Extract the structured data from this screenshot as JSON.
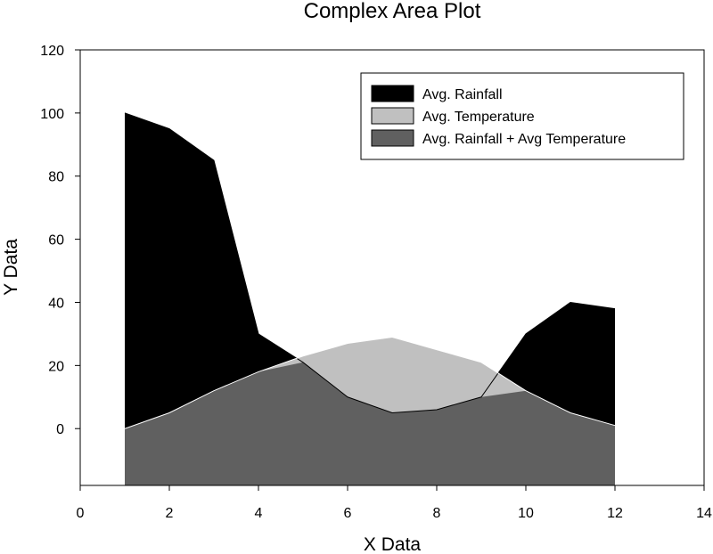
{
  "chart_data": {
    "type": "area",
    "title": "Complex Area Plot",
    "xlabel": "X Data",
    "ylabel": "Y Data",
    "xlim": [
      0,
      14
    ],
    "ylim": [
      -18,
      120
    ],
    "xticks": [
      "0",
      "2",
      "4",
      "6",
      "8",
      "10",
      "12",
      "14"
    ],
    "yticks": [
      "0",
      "20",
      "40",
      "60",
      "80",
      "100",
      "120"
    ],
    "grid": false,
    "legend_position": "top-right",
    "x": [
      1,
      2,
      3,
      4,
      5,
      6,
      7,
      8,
      9,
      10,
      11,
      12
    ],
    "series": [
      {
        "name": "Avg. Rainfall",
        "color": "#000000",
        "values": [
          100,
          95,
          85,
          30,
          21,
          10,
          5,
          6,
          10,
          30,
          40,
          38
        ]
      },
      {
        "name": "Avg. Temperature",
        "color": "#c0c0c0",
        "values": [
          0,
          5,
          12,
          18,
          23,
          27,
          29,
          25,
          21,
          12,
          5,
          1
        ]
      },
      {
        "name": "Avg. Rainfall + Avg Temperature",
        "color": "#606060",
        "values": [
          0,
          5,
          12,
          18,
          21,
          10,
          5,
          6,
          10,
          12,
          5,
          1
        ]
      }
    ]
  }
}
